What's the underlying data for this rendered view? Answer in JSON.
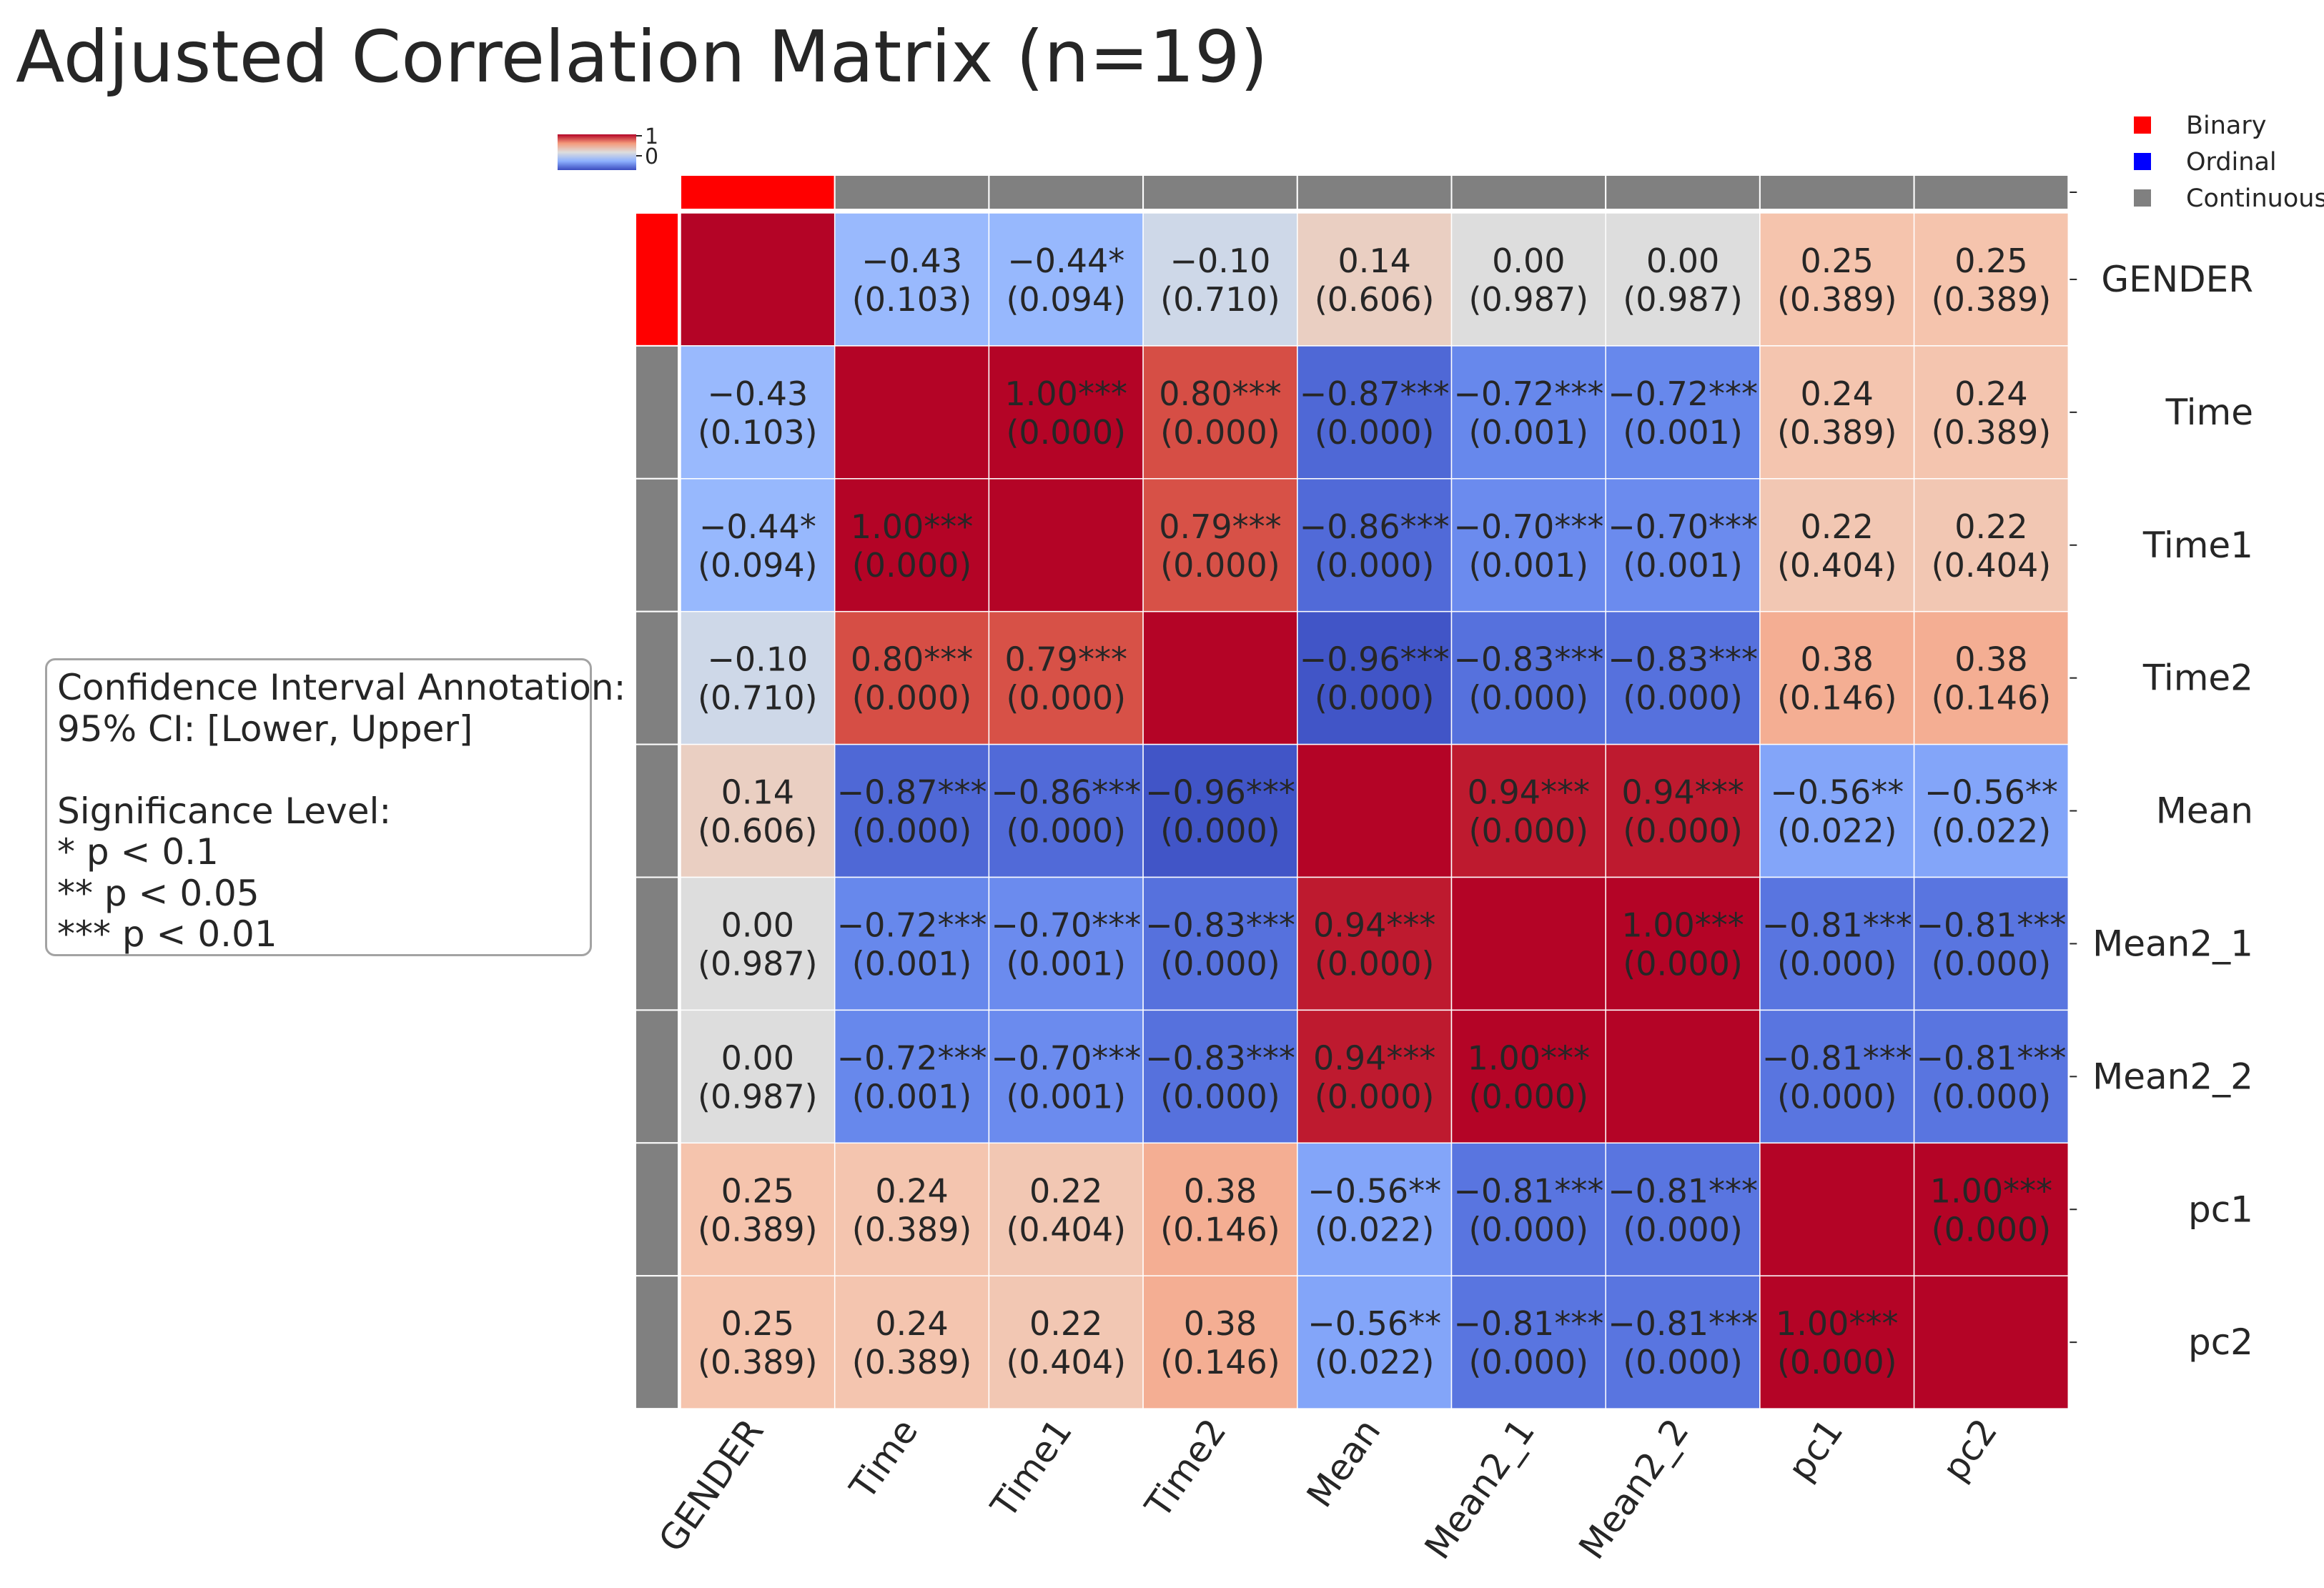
{
  "title": "Adjusted Correlation Matrix (n=19)",
  "annotation_box": {
    "lines": [
      "Confidence Interval Annotation:",
      "95% CI: [Lower, Upper]",
      "",
      "Significance Level:",
      "* p < 0.1",
      "** p < 0.05",
      "*** p < 0.01"
    ]
  },
  "legend": {
    "items": [
      {
        "label": "Binary",
        "color": "#ff0000"
      },
      {
        "label": "Ordinal",
        "color": "#0000ff"
      },
      {
        "label": "Continuous",
        "color": "#808080"
      }
    ]
  },
  "colorbar": {
    "ticks": [
      "1",
      "0"
    ],
    "colormap": "coolwarm"
  },
  "chart_data": {
    "type": "heatmap",
    "title": "Adjusted Correlation Matrix (n=19)",
    "variables": [
      "GENDER",
      "Time",
      "Time1",
      "Time2",
      "Mean",
      "Mean2_1",
      "Mean2_2",
      "pc1",
      "pc2"
    ],
    "variable_types": [
      "Binary",
      "Continuous",
      "Continuous",
      "Continuous",
      "Continuous",
      "Continuous",
      "Continuous",
      "Continuous",
      "Continuous"
    ],
    "vmin": -1,
    "vmax": 1,
    "correlations": [
      [
        1.0,
        -0.43,
        -0.44,
        -0.1,
        0.14,
        0.0,
        0.0,
        0.25,
        0.25
      ],
      [
        -0.43,
        1.0,
        1.0,
        0.8,
        -0.87,
        -0.72,
        -0.72,
        0.24,
        0.24
      ],
      [
        -0.44,
        1.0,
        1.0,
        0.79,
        -0.86,
        -0.7,
        -0.7,
        0.22,
        0.22
      ],
      [
        -0.1,
        0.8,
        0.79,
        1.0,
        -0.96,
        -0.83,
        -0.83,
        0.38,
        0.38
      ],
      [
        0.14,
        -0.87,
        -0.86,
        -0.96,
        1.0,
        0.94,
        0.94,
        -0.56,
        -0.56
      ],
      [
        0.0,
        -0.72,
        -0.7,
        -0.83,
        0.94,
        1.0,
        1.0,
        -0.81,
        -0.81
      ],
      [
        0.0,
        -0.72,
        -0.7,
        -0.83,
        0.94,
        1.0,
        1.0,
        -0.81,
        -0.81
      ],
      [
        0.25,
        0.24,
        0.22,
        0.38,
        -0.56,
        -0.81,
        -0.81,
        1.0,
        1.0
      ],
      [
        0.25,
        0.24,
        0.22,
        0.38,
        -0.56,
        -0.81,
        -0.81,
        1.0,
        1.0
      ]
    ],
    "annotations": [
      [
        "",
        "−0.43",
        "−0.44*",
        "−0.10",
        "0.14",
        "0.00",
        "0.00",
        "0.25",
        "0.25"
      ],
      [
        "−0.43",
        "",
        "1.00***",
        "0.80***",
        "−0.87***",
        "−0.72***",
        "−0.72***",
        "0.24",
        "0.24"
      ],
      [
        "−0.44*",
        "1.00***",
        "",
        "0.79***",
        "−0.86***",
        "−0.70***",
        "−0.70***",
        "0.22",
        "0.22"
      ],
      [
        "−0.10",
        "0.80***",
        "0.79***",
        "",
        "−0.96***",
        "−0.83***",
        "−0.83***",
        "0.38",
        "0.38"
      ],
      [
        "0.14",
        "−0.87***",
        "−0.86***",
        "−0.96***",
        "",
        "0.94***",
        "0.94***",
        "−0.56**",
        "−0.56**"
      ],
      [
        "0.00",
        "−0.72***",
        "−0.70***",
        "−0.83***",
        "0.94***",
        "",
        "1.00***",
        "−0.81***",
        "−0.81***"
      ],
      [
        "0.00",
        "−0.72***",
        "−0.70***",
        "−0.83***",
        "0.94***",
        "1.00***",
        "",
        "−0.81***",
        "−0.81***"
      ],
      [
        "0.25",
        "0.24",
        "0.22",
        "0.38",
        "−0.56**",
        "−0.81***",
        "−0.81***",
        "",
        "1.00***"
      ],
      [
        "0.25",
        "0.24",
        "0.22",
        "0.38",
        "−0.56**",
        "−0.81***",
        "−0.81***",
        "1.00***",
        ""
      ]
    ],
    "p_values": [
      [
        "",
        "(0.103)",
        "(0.094)",
        "(0.710)",
        "(0.606)",
        "(0.987)",
        "(0.987)",
        "(0.389)",
        "(0.389)"
      ],
      [
        "(0.103)",
        "",
        "(0.000)",
        "(0.000)",
        "(0.000)",
        "(0.001)",
        "(0.001)",
        "(0.389)",
        "(0.389)"
      ],
      [
        "(0.094)",
        "(0.000)",
        "",
        "(0.000)",
        "(0.000)",
        "(0.001)",
        "(0.001)",
        "(0.404)",
        "(0.404)"
      ],
      [
        "(0.710)",
        "(0.000)",
        "(0.000)",
        "",
        "(0.000)",
        "(0.000)",
        "(0.000)",
        "(0.146)",
        "(0.146)"
      ],
      [
        "(0.606)",
        "(0.000)",
        "(0.000)",
        "(0.000)",
        "",
        "(0.000)",
        "(0.000)",
        "(0.022)",
        "(0.022)"
      ],
      [
        "(0.987)",
        "(0.001)",
        "(0.001)",
        "(0.000)",
        "(0.000)",
        "",
        "(0.000)",
        "(0.000)",
        "(0.000)"
      ],
      [
        "(0.987)",
        "(0.001)",
        "(0.001)",
        "(0.000)",
        "(0.000)",
        "(0.000)",
        "",
        "(0.000)",
        "(0.000)"
      ],
      [
        "(0.389)",
        "(0.389)",
        "(0.404)",
        "(0.146)",
        "(0.022)",
        "(0.000)",
        "(0.000)",
        "",
        "(0.000)"
      ],
      [
        "(0.389)",
        "(0.389)",
        "(0.404)",
        "(0.146)",
        "(0.022)",
        "(0.000)",
        "(0.000)",
        "(0.000)",
        ""
      ]
    ]
  }
}
